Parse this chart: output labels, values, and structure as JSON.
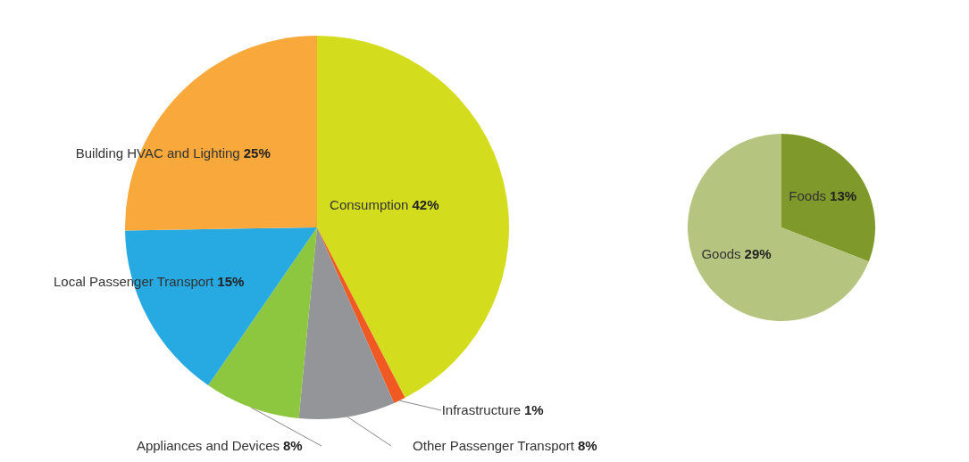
{
  "chart_data": [
    {
      "type": "pie",
      "categories": [
        "Consumption",
        "Infrastructure",
        "Other Passenger Transport",
        "Appliances and Devices",
        "Local Passenger Transport",
        "Building HVAC and Lighting"
      ],
      "values": [
        42,
        1,
        8,
        8,
        15,
        25
      ],
      "colors": [
        "#d4dc1e",
        "#f05a22",
        "#939598",
        "#8dc63f",
        "#27a9e1",
        "#f9a93b"
      ],
      "value_labels": [
        "42%",
        "1%",
        "8%",
        "8%",
        "15%",
        "25%"
      ]
    },
    {
      "type": "pie",
      "categories": [
        "Foods",
        "Goods"
      ],
      "values": [
        13,
        29
      ],
      "colors": [
        "#7f9a2a",
        "#b5c47f"
      ],
      "value_labels": [
        "13%",
        "29%"
      ]
    }
  ]
}
